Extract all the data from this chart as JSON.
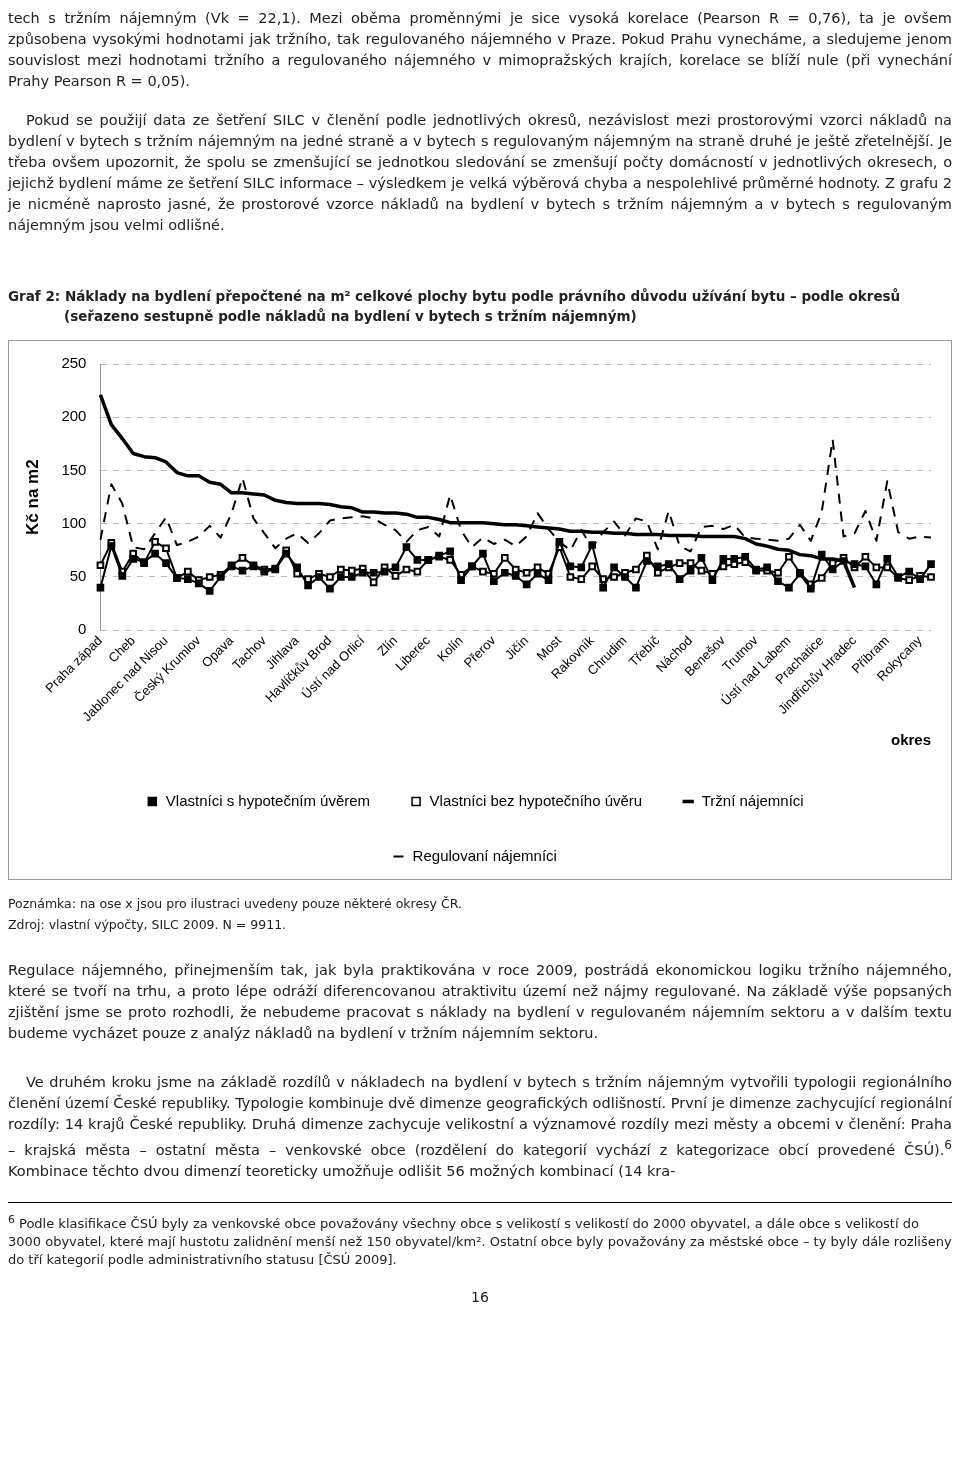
{
  "chart_data": {
    "type": "line",
    "title": "Graf 2: Náklady na bydlení přepočtené na m² celkové plochy bytu podle právního důvodu užívání bytu – podle okresů (seřazeno sestupně podle nákladů na bydlení v bytech s tržním nájemným)",
    "xlabel": "okres",
    "ylabel": "Kč na m2",
    "ylim": [
      0,
      250
    ],
    "yticks": [
      0,
      50,
      100,
      150,
      200,
      250
    ],
    "grid": "y",
    "legend": "bottom",
    "categories": [
      "Praha západ",
      null,
      null,
      "Cheb",
      null,
      null,
      "Jablonec nad Nisou",
      null,
      null,
      "Český Krumlov",
      null,
      null,
      "Opava",
      null,
      null,
      "Tachov",
      null,
      null,
      "Jihlava",
      null,
      null,
      "Havlíčkův Brod",
      null,
      null,
      "Ústí nad Orlicí",
      null,
      null,
      "Zlín",
      null,
      null,
      "Liberec",
      null,
      null,
      "Kolín",
      null,
      null,
      "Přerov",
      null,
      null,
      "Jičín",
      null,
      null,
      "Most",
      null,
      null,
      "Rakovník",
      null,
      null,
      "Chrudim",
      null,
      null,
      "Třebíč",
      null,
      null,
      "Náchod",
      null,
      null,
      "Benešov",
      null,
      null,
      "Trutnov",
      null,
      null,
      "Ústí nad Labem",
      null,
      null,
      "Prachatice",
      null,
      null,
      "Jindřichův Hradec",
      null,
      null,
      "Příbram",
      null,
      null,
      "Rokycany",
      null
    ],
    "series": [
      {
        "name": "Vlastníci s hypotečním úvěrem",
        "color": "#000000",
        "marker": "square",
        "line_style": "solid",
        "values": [
          40,
          79,
          51,
          67,
          64,
          72,
          63,
          49,
          48,
          44,
          37,
          50,
          60,
          56,
          60,
          55,
          57,
          72,
          59,
          42,
          50,
          39,
          50,
          50,
          54,
          54,
          55,
          59,
          78,
          66,
          66,
          70,
          74,
          47,
          60,
          72,
          46,
          54,
          51,
          43,
          53,
          47,
          83,
          60,
          59,
          80,
          40,
          59,
          50,
          40,
          65,
          60,
          62,
          48,
          56,
          68,
          47,
          67,
          67,
          69,
          57,
          59,
          46,
          40,
          53,
          39,
          71,
          57,
          65,
          62,
          60,
          43,
          67,
          50,
          55,
          48,
          62
        ]
      },
      {
        "name": "Vlastníci bez hypotečního úvěru",
        "color": "#000000",
        "marker": "square_open",
        "line_style": "solid",
        "values": [
          61,
          82,
          55,
          72,
          63,
          83,
          77,
          49,
          55,
          47,
          50,
          52,
          61,
          68,
          61,
          57,
          58,
          75,
          53,
          48,
          53,
          50,
          57,
          56,
          58,
          45,
          59,
          51,
          57,
          55,
          66,
          69,
          66,
          52,
          60,
          55,
          53,
          68,
          57,
          54,
          59,
          53,
          78,
          50,
          48,
          60,
          48,
          50,
          54,
          57,
          70,
          54,
          59,
          63,
          63,
          56,
          53,
          60,
          62,
          64,
          56,
          56,
          54,
          69,
          54,
          43,
          49,
          63,
          68,
          59,
          69,
          59,
          59,
          49,
          47,
          51,
          50
        ]
      },
      {
        "name": "Tržní nájemníci",
        "color": "#000000",
        "marker": "none",
        "line_style": "solid",
        "values": [
          221,
          193,
          180,
          166,
          163,
          162,
          158,
          148,
          145,
          145,
          139,
          137,
          129,
          129,
          128,
          127,
          122,
          120,
          119,
          119,
          119,
          118,
          116,
          115,
          111,
          111,
          110,
          110,
          109,
          106,
          106,
          104,
          101,
          101,
          101,
          101,
          100,
          99,
          99,
          98,
          97,
          96,
          95,
          93,
          93,
          92,
          92,
          91,
          91,
          90,
          90,
          90,
          89,
          89,
          89,
          88,
          88,
          88,
          88,
          86,
          81,
          79,
          76,
          75,
          71,
          70,
          67,
          67,
          65,
          40,
          null,
          null,
          null,
          null,
          null,
          null,
          null
        ]
      },
      {
        "name": "Regulovaní nájemníci",
        "color": "#000000",
        "marker": "none",
        "line_style": "dashed",
        "values": [
          85,
          137,
          119,
          78,
          76,
          91,
          106,
          80,
          83,
          88,
          98,
          87,
          110,
          143,
          105,
          91,
          77,
          86,
          91,
          82,
          91,
          103,
          105,
          106,
          107,
          105,
          99,
          94,
          83,
          94,
          97,
          88,
          127,
          94,
          78,
          87,
          81,
          85,
          79,
          88,
          110,
          95,
          83,
          75,
          94,
          78,
          92,
          102,
          89,
          105,
          102,
          76,
          112,
          79,
          74,
          97,
          98,
          95,
          99,
          87,
          86,
          85,
          84,
          86,
          99,
          84,
          111,
          179,
          88,
          91,
          112,
          84,
          140,
          92,
          86,
          88,
          87
        ]
      }
    ],
    "annotations": [
      "tech s tržním nájemným (Vk = 22,1). Mezi oběma proměnnými je sice vysoká korelace (Pearson R = 0,76), ta je ovšem způsobena vysokými hodnotami jak tržního, tak regulovaného nájemného v Praze. Pokud Prahu vynecháme, a sledujeme jenom souvislost mezi hodnotami tržního a regulovaného nájemného v mimopražských krajích, korelace se blíží nule (při vynechání Prahy Pearson R = 0,05).",
      "Pokud se použijí data ze šetření SILC v členění podle jednotlivých okresů, nezávislost mezi prostorovými vzorci nákladů na bydlení v bytech s tržním nájemným na jedné straně a v bytech s regulovaným nájemným na straně druhé je ještě zřetelnější. Je třeba ovšem upozornit, že spolu se zmenšující se jednotkou sledování se zmenšují počty domácností v jednotlivých okresech, o jejichž bydlení máme ze šetření SILC informace – výsledkem je velká výběrová chyba a nespolehlivé průměrné hodnoty. Z grafu 2 je nicméně naprosto jasné, že prostorové vzorce nákladů na bydlení v bytech s tržním nájemným a v bytech s regulovaným nájemným jsou velmi odlišné.",
      "Poznámka: na ose x jsou pro ilustraci uvedeny pouze některé okresy ČR.",
      "Zdroj: vlastní výpočty, SILC 2009. N = 9911.",
      "Regulace nájemného, přinejmenším tak, jak byla praktikována v roce 2009, postrádá ekonomickou logiku tržního nájemného, které se tvoří na trhu, a proto lépe odráží diferencovanou atraktivitu území než nájmy regulované. Na základě výše popsaných zjištění jsme se proto rozhodli, že nebudeme pracovat s náklady na bydlení v regulovaném nájemním sektoru a v dalším textu budeme vycházet pouze z analýz nákladů na bydlení v tržním nájemním sektoru.",
      "Ve druhém kroku jsme na základě rozdílů v nákladech na bydlení v bytech s tržním nájemným vytvořili typologii regionálního členění území České republiky. Typologie kombinuje dvě dimenze geografických odlišností. První je dimenze zachycující regionální rozdíly: 14 krajů České republiky. Druhá dimenze zachycuje velikostní a významové rozdíly mezi městy a obcemi v členění: Praha – krajská města – ostatní města – venkovské obce (rozdělení do kategorií vychází z kategorizace obcí provedené ČSÚ).$^{6}$ Kombinace těchto dvou dimenzí teoreticky umožňuje odlišit 56 možných kombinací (14 kra-",
      "$^{6}$ Podle klasifikace ČSÚ byly za venkovské obce považovány všechny obce s velikostí s velikostí do 2000 obyvatel, a dále obce s velikostí do 3000 obyvatel, které mají hustotu zalidnění menší než 150 obyvatel/km². Ostatní obce byly považovány za městské obce – ty byly dále rozlišeny do tří kategorií podle administrativního statusu [ČSÚ 2009].",
      "16"
    ]
  }
}
